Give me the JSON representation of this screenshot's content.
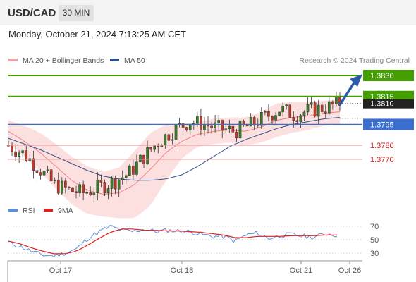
{
  "header": {
    "symbol": "USD/CAD",
    "timeframe": "30 MIN"
  },
  "datetime": "Monday, October 21, 2024 7:13:25 AM CET",
  "legend": {
    "bb_label": "MA 20 + Bollinger Bands",
    "ma50_label": "MA 50"
  },
  "credit": "Research © 2024 Trading Central",
  "rsi_legend": {
    "rsi_label": "RSI",
    "ma_label": "9MA"
  },
  "colors": {
    "bb": "#f08080",
    "ma50": "#2c4f8c",
    "resistance": "#44a000",
    "pivot": "#3a6fd0",
    "support": "#dd2222",
    "rsi": "#5b8fd9",
    "rsi_ma": "#dd2222",
    "arrow": "#2a5aa8"
  },
  "chart_data": [
    {
      "type": "candlestick",
      "title": "USD/CAD",
      "ylim": [
        1.369,
        1.384
      ],
      "x_ticks": [
        "Oct 17",
        "Oct 18",
        "Oct 21",
        "Oct 26"
      ],
      "current_price": "1.3810",
      "levels": [
        {
          "label": "1.3830",
          "value": 1.383,
          "kind": "resistance"
        },
        {
          "label": "1.3815",
          "value": 1.3815,
          "kind": "resistance"
        },
        {
          "label": "1.3795",
          "value": 1.3795,
          "kind": "pivot"
        },
        {
          "label": "1.3780",
          "value": 1.378,
          "kind": "support"
        },
        {
          "label": "1.3770",
          "value": 1.377,
          "kind": "support"
        }
      ],
      "series": [
        {
          "name": "MA 20 + Bollinger Bands",
          "ma_values": [
            1.379,
            1.3783,
            1.3775,
            1.3765,
            1.3755,
            1.3748,
            1.3745,
            1.3746,
            1.3752,
            1.3763,
            1.3775,
            1.3783,
            1.3788,
            1.379,
            1.3791,
            1.379,
            1.3793,
            1.3798,
            1.38,
            1.3801,
            1.3803,
            1.3804
          ],
          "bb_width": [
            0.0008,
            0.0011,
            0.0014,
            0.0016,
            0.0017,
            0.0017,
            0.0016,
            0.0018,
            0.0024,
            0.0026,
            0.002,
            0.0012,
            0.0009,
            0.0009,
            0.0009,
            0.001,
            0.0011,
            0.0012,
            0.0011,
            0.001,
            0.0009,
            0.0009
          ]
        },
        {
          "name": "MA 50",
          "values": [
            1.3785,
            1.3781,
            1.3777,
            1.3772,
            1.3767,
            1.3762,
            1.3758,
            1.3756,
            1.3755,
            1.3755,
            1.3756,
            1.3759,
            1.3765,
            1.3772,
            1.3779,
            1.3784,
            1.3788,
            1.3792,
            1.3795,
            1.3797,
            1.3799,
            1.38
          ]
        }
      ],
      "close_path": [
        1.378,
        1.3774,
        1.3764,
        1.3752,
        1.3748,
        1.3746,
        1.375,
        1.3754,
        1.376,
        1.3772,
        1.3783,
        1.3791,
        1.3797,
        1.3795,
        1.3792,
        1.379,
        1.3794,
        1.38,
        1.3806,
        1.3802,
        1.3805,
        1.3807,
        1.381
      ],
      "projection": {
        "from": 1.3807,
        "to": 1.383
      }
    },
    {
      "type": "line",
      "title": "RSI",
      "yticks": [
        70,
        50,
        30
      ],
      "ylim": [
        20,
        80
      ],
      "series": [
        {
          "name": "RSI",
          "values": [
            46,
            40,
            33,
            27,
            26,
            30,
            36,
            52,
            62,
            70,
            64,
            62,
            66,
            62,
            64,
            63,
            62,
            58,
            55,
            55,
            48,
            57,
            60,
            52,
            56,
            58,
            55,
            54,
            59,
            57
          ]
        },
        {
          "name": "9MA",
          "values": [
            48,
            44,
            38,
            33,
            29,
            29,
            33,
            42,
            52,
            61,
            66,
            66,
            64,
            64,
            63,
            63,
            62,
            61,
            59,
            57,
            53,
            53,
            55,
            55,
            55,
            56,
            56,
            56,
            57,
            57
          ]
        }
      ]
    }
  ]
}
